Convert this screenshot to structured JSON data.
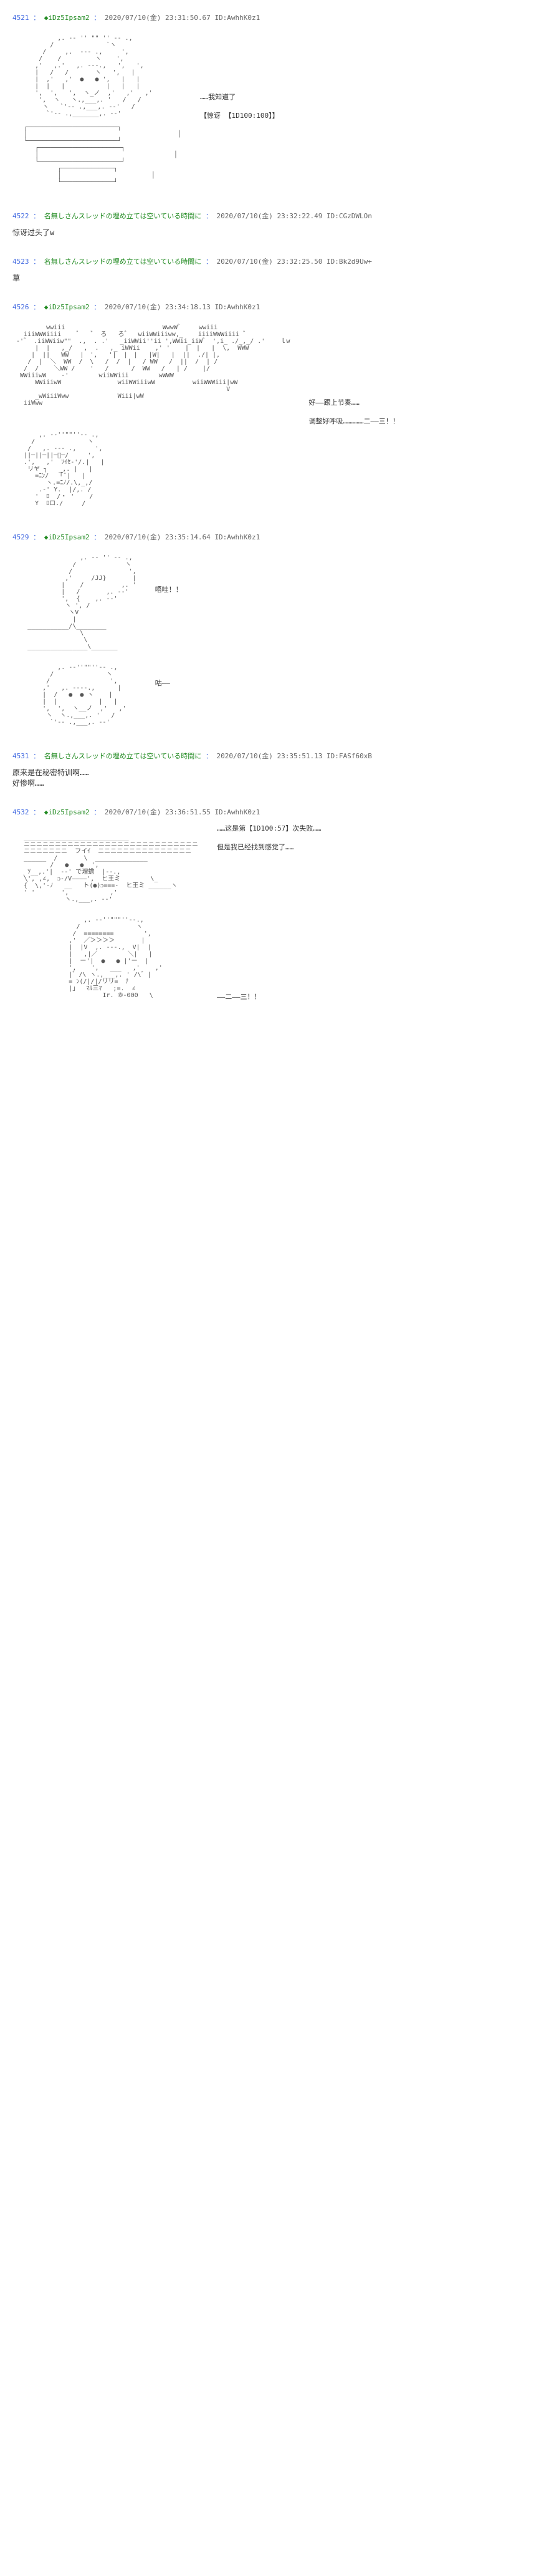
{
  "posts": [
    {
      "num": "4521",
      "name": "◆iDz5Ipsam2",
      "date": "2020/07/10(金) 23:31:50.67",
      "id": "ID:AwhhK0z1",
      "side_lines": [
        "……我知道了",
        "【惊讶 【1D100:100】】"
      ],
      "aa_type": "face1"
    },
    {
      "num": "4522",
      "name": "名無しさんスレッドの埋め立ては空いている時間に",
      "date": "2020/07/10(金) 23:32:22.49",
      "id": "ID:CGzDWLOn",
      "reply": "惊讶过头了w"
    },
    {
      "num": "4523",
      "name": "名無しさんスレッドの埋め立ては空いている時間に",
      "date": "2020/07/10(金) 23:32:25.50",
      "id": "ID:Bk2d9Uw+",
      "reply": "草"
    },
    {
      "num": "4526",
      "name": "◆iDz5Ipsam2",
      "date": "2020/07/10(金) 23:34:18.13",
      "id": "ID:AwhhK0z1",
      "side_lines": [
        "好——跟上节奏……",
        "调整好呼吸……………二――三！！"
      ],
      "aa_type": "crowd"
    },
    {
      "num": "4529",
      "name": "◆iDz5Ipsam2",
      "date": "2020/07/10(金) 23:35:14.64",
      "id": "ID:AwhhK0z1",
      "side_lines": [
        "唔哇！！",
        "",
        "",
        "",
        "",
        "咕——"
      ],
      "aa_type": "fall"
    },
    {
      "num": "4531",
      "name": "名無しさんスレッドの埋め立ては空いている時間に",
      "date": "2020/07/10(金) 23:35:51.13",
      "id": "ID:FASf60xB",
      "reply": "原来是在秘密特训啊……\n好惨啊……"
    },
    {
      "num": "4532",
      "name": "◆iDz5Ipsam2",
      "date": "2020/07/10(金) 23:36:51.55",
      "id": "ID:AwhhK0z1",
      "side_lines": [
        "……这是第【1D100:57】次失败……",
        "但是我已经找到感觉了……",
        "",
        "",
        "",
        "",
        "",
        "",
        "",
        "――二――三！！"
      ],
      "aa_type": "face2"
    }
  ],
  "aa": {
    "face1": "            ,. -‐ '' \"\" '' ‐- .,\n          /              `ヽ\n        /     ,.  -‐- .,     ',\n       /    /         ヽ    ',\n      ,'   ,.'   ,. -‐-.,   ',   ',\n      |   /   /       ヽ   ',   |\n      |  ,'   ,'  ●   ● ',   |   |\n      |  |   |           |   |   |\n      ',  ',   ',  ヽ_ノ  ,'   ,'   ,'\n       ',  ヽ   ヽ.,___,. '   /   /\n        ヽ   `'‐- .,___,. -‐'   /\n         `'‐- .,_______,. -‐'\n\n   ┌────────────────────────┐\n   │                                        │\n   └────────────────────────┘\n      ┌──────────────────────┐\n      │                                    │\n      └──────────────────────┘\n            ┌──────────────┐\n            │                        │\n            └──────────────┘",
    "crowd": "         wwiii                          WwwW゛    wwiii\n   iiiWWWiiii    ﾞ   ゛ ろ   ろ゛  wiiWWiiiww,_    iiiiWWWiiii ﾞ\n -'゛ .iiWWiiw\"\"  .,  . .'   _iiWWii''ii ',WWii_iiW゛ ',i_ ./_,_/ .'    ｌw\n      |  |   ,_/   ,  .   ,_ iWWii    ,' '    |  |   |  \\,  WWW\n     |  ||   WW   |　',   '|  |　|   |W|   |  ||  ./| |,\n    /  |  ＼  WW  /  \\   /  /  |   / WW   /  ||  /  | /\n   /  /    ＼WW /    '   /      /  WW   /   | /    |/\n  WWiiiwW    -'        wiiWWiii        wWWW\n      WWiiiwW               wiiWWiiiwW          wiiWWWiii|wW\n                                                         V\n      _wWiiiWww             Wiii|wW\n   iiWww",
    "crowd2": "       ,. -‐''\"\"''‐- .,\n     /              ヽ\n    /   ,. -‐- .,     ',\n   ||─||─||─ﾟ─/     ',\n   .',   ,'  ｿｲｾ-'/.|   |\n    リヤ ┐   _,. |   |\n      =ﾆﾝ/   ｢¨|   |\n         ヽ.=ﾆﾉ/.\\,_,/\n       .‐' Y.  |/,. /\n      '  ﾛ  /・ '    /\n      Y  ﾛロ./     /",
    "fall": "                  ,. -‐ '' ‐- .,\n                /             ヽ\n               /               ',\n              ,'     /JJ}       |\n             |    /          ,. '\n             |   /       ,. -‐'\n             ',  {    ,. -‐'\n              ヽ ', /\n               ヽV\n                |\n    ___________/\\________\n                  \\\n                   \\\n    ________________\\_______\n\n\n            ,. -‐''\"\"''‐- .,\n          /              ヽ\n         /                ',\n        ,'   ,. -‐‐-.,      |\n        |  /   ●  ● ヽ    |\n        |  |           |   |\n        ',  ',  ヽ__ノ  ,'   ,'\n         ヽ  ヽ.,___,. '   /\n          `'‐- .,___,. -‐'",
    "face2": "   ____________________________\n   ニニニニニニニニニニニニニニニニニニニニニニニニニニニニ\n   ニニニニニニニ  フイｲ  ニニニニニニニニニニニニニニニ\n   ______  /       \\  ______________\n          /   ●   ●  ',\n    ｿ__,.'|  -‐' で理蟾  |‐-.,\n   ╲', ,∠,  ᴐ-/V————',  ヒ王ミ        \\_\n   {  \\,'-ﾉ   __   ト(●)ᴐ===-  ヒ王ミ ______ヽ\n   ' '       ',           ,'\n              ヽ.,___,. -‐'\n\n\n                   ,. -‐''\"\"\"''‐-.,\n                 /               ヽ\n                /  ========        ',\n               ,'  ／＞＞＞＞       |\n               |  |V  ,. -‐-.,  V|  |\n               |   ,|／        ＼|   |\n               |  ー'|  ●   ● |'ー  |\n               ',    ',   ___   ,'    ,'\n               |゛/\\ ヽ.,___,. ' /\\゛|\n               = ﾝ(/|/|/リリ=  ﾅ\n               |」  ﾏﾙ三ﾏ   ;=.  ∠\n                        Ir. ⑧-000   \\"
  }
}
